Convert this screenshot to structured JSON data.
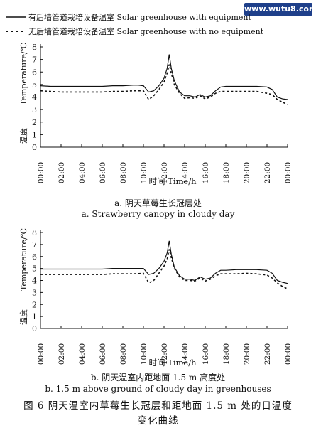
{
  "watermark": "www.wutu8.com",
  "legend": {
    "solid": "有后墙管道栽培设备温室   Solar greenhouse with equipment",
    "dashed": "无后墙管道栽培设备温室   Solar greenhouse with no equipment"
  },
  "figure_caption": {
    "line1": "图 6   阴天温室内草莓生长冠层和距地面 1.5 m 处的日温度",
    "line2": "变化曲线"
  },
  "chart_data": [
    {
      "type": "line",
      "caption_cn": "a.  阴天草莓生长冠层处",
      "caption_en": "a. Strawberry canopy in cloudy day",
      "xlabel": "时间    Time/h",
      "ylabel_en": "Temperature/℃",
      "ylabel_cn": "温度",
      "ylim": [
        0,
        8
      ],
      "y_ticks": [
        0,
        1,
        2,
        3,
        4,
        5,
        6,
        7,
        8
      ],
      "x_ticks": [
        "00:00",
        "02:00",
        "04:00",
        "06:00",
        "08:00",
        "10:00",
        "12:00",
        "14:00",
        "16:00",
        "18:00",
        "20:00",
        "22:00",
        "00:00"
      ],
      "x": [
        0,
        1,
        2,
        3,
        4,
        5,
        6,
        7,
        8,
        9,
        9.5,
        10,
        10.5,
        11,
        11.5,
        12,
        12.3,
        12.5,
        12.7,
        13,
        13.5,
        14,
        14.5,
        15,
        15.5,
        16,
        16.5,
        17,
        17.5,
        18,
        19,
        20,
        21,
        22,
        22.5,
        23,
        23.5,
        24
      ],
      "series": [
        {
          "name": "有后墙管道栽培设备温室   Solar greenhouse with equipment",
          "style": "solid",
          "color": "#111111",
          "values": [
            4.9,
            4.85,
            4.85,
            4.85,
            4.85,
            4.85,
            4.85,
            4.9,
            4.9,
            4.95,
            4.95,
            4.9,
            4.4,
            4.5,
            4.9,
            5.5,
            6.3,
            7.4,
            6.3,
            5.3,
            4.4,
            4.1,
            4.1,
            4.0,
            4.2,
            4.0,
            4.1,
            4.5,
            4.8,
            4.85,
            4.85,
            4.85,
            4.85,
            4.8,
            4.6,
            4.0,
            3.85,
            3.8
          ]
        },
        {
          "name": "无后墙管道栽培设备温室   Solar greenhouse with no equipment",
          "style": "dashed",
          "color": "#111111",
          "values": [
            4.5,
            4.45,
            4.4,
            4.4,
            4.4,
            4.4,
            4.4,
            4.45,
            4.45,
            4.5,
            4.5,
            4.5,
            3.8,
            4.1,
            4.6,
            5.2,
            5.9,
            6.6,
            5.9,
            5.0,
            4.3,
            3.9,
            3.95,
            3.9,
            4.1,
            3.85,
            4.0,
            4.3,
            4.45,
            4.45,
            4.45,
            4.45,
            4.45,
            4.3,
            4.2,
            3.8,
            3.6,
            3.4
          ]
        }
      ]
    },
    {
      "type": "line",
      "caption_cn": "b.  阴天温室内距地面 1.5 m 高度处",
      "caption_en": "b. 1.5 m above ground of cloudy day in greenhouses",
      "xlabel": "时间    Time/h",
      "ylabel_en": "Temperature/℃",
      "ylabel_cn": "温度",
      "ylim": [
        0,
        8
      ],
      "y_ticks": [
        0,
        1,
        2,
        3,
        4,
        5,
        6,
        7,
        8
      ],
      "x_ticks": [
        "00:00",
        "02:00",
        "04:00",
        "06:00",
        "08:00",
        "10:00",
        "12:00",
        "14:00",
        "16:00",
        "18:00",
        "20:00",
        "22:00",
        "00:00"
      ],
      "x": [
        0,
        1,
        2,
        3,
        4,
        5,
        6,
        7,
        8,
        9,
        10,
        10.5,
        11,
        11.5,
        12,
        12.3,
        12.5,
        12.7,
        13,
        13.5,
        14,
        14.5,
        15,
        15.5,
        16,
        16.5,
        17,
        17.5,
        18,
        19,
        20,
        21,
        22,
        22.5,
        23,
        23.5,
        24
      ],
      "series": [
        {
          "name": "有后墙管道栽培设备温室   Solar greenhouse with equipment",
          "style": "solid",
          "color": "#111111",
          "values": [
            4.95,
            4.95,
            4.95,
            4.95,
            4.95,
            4.95,
            4.95,
            5.0,
            5.0,
            5.0,
            5.0,
            4.5,
            4.6,
            5.0,
            5.6,
            6.3,
            7.3,
            6.2,
            5.1,
            4.4,
            4.1,
            4.1,
            4.0,
            4.3,
            4.1,
            4.2,
            4.6,
            4.85,
            4.85,
            4.9,
            4.9,
            4.9,
            4.85,
            4.6,
            4.0,
            3.85,
            3.75
          ]
        },
        {
          "name": "无后墙管道栽培设备温室   Solar greenhouse with no equipment",
          "style": "dashed",
          "color": "#111111",
          "values": [
            4.5,
            4.5,
            4.5,
            4.5,
            4.5,
            4.5,
            4.5,
            4.55,
            4.55,
            4.55,
            4.6,
            3.8,
            4.0,
            4.6,
            5.2,
            5.8,
            6.6,
            5.9,
            5.0,
            4.3,
            4.0,
            4.0,
            3.95,
            4.2,
            3.95,
            4.1,
            4.4,
            4.55,
            4.55,
            4.55,
            4.6,
            4.55,
            4.45,
            4.2,
            3.8,
            3.5,
            3.3
          ]
        }
      ]
    }
  ]
}
